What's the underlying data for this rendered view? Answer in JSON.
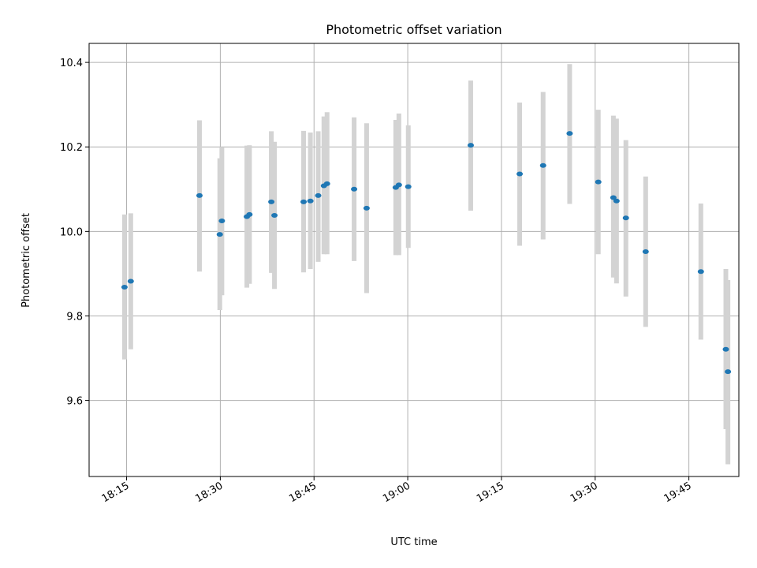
{
  "chart_data": {
    "type": "scatter",
    "title": "Photometric offset variation",
    "xlabel": "UTC time",
    "ylabel": "Photometric offset",
    "x_axis": {
      "type": "time",
      "range": [
        "18:09",
        "19:53"
      ],
      "ticks": [
        "18:15",
        "18:30",
        "18:45",
        "19:00",
        "19:15",
        "19:30",
        "19:45"
      ]
    },
    "y_axis": {
      "range": [
        9.42,
        10.445
      ],
      "ticks": [
        9.6,
        9.8,
        10.0,
        10.2,
        10.4
      ],
      "tick_labels": [
        "9.6",
        "9.8",
        "10.0",
        "10.2",
        "10.4"
      ]
    },
    "grid": true,
    "colors": {
      "points": "#1f77b4",
      "error_bars": "#d3d3d3",
      "grid": "#b0b0b0"
    },
    "series": [
      {
        "marker": "point",
        "error_bars": true,
        "points": [
          {
            "x": "18:14:40",
            "y": 9.868,
            "err_low": 9.697,
            "err_high": 10.04
          },
          {
            "x": "18:15:40",
            "y": 9.882,
            "err_low": 9.721,
            "err_high": 10.043
          },
          {
            "x": "18:26:40",
            "y": 10.085,
            "err_low": 9.905,
            "err_high": 10.263
          },
          {
            "x": "18:29:55",
            "y": 9.993,
            "err_low": 9.814,
            "err_high": 10.173
          },
          {
            "x": "18:30:15",
            "y": 10.025,
            "err_low": 9.849,
            "err_high": 10.2
          },
          {
            "x": "18:34:15",
            "y": 10.035,
            "err_low": 9.867,
            "err_high": 10.203
          },
          {
            "x": "18:34:40",
            "y": 10.04,
            "err_low": 9.876,
            "err_high": 10.204
          },
          {
            "x": "18:38:10",
            "y": 10.07,
            "err_low": 9.902,
            "err_high": 10.237
          },
          {
            "x": "18:38:40",
            "y": 10.038,
            "err_low": 9.864,
            "err_high": 10.212
          },
          {
            "x": "18:43:20",
            "y": 10.07,
            "err_low": 9.903,
            "err_high": 10.238
          },
          {
            "x": "18:44:25",
            "y": 10.072,
            "err_low": 9.911,
            "err_high": 10.234
          },
          {
            "x": "18:45:40",
            "y": 10.085,
            "err_low": 9.928,
            "err_high": 10.237
          },
          {
            "x": "18:46:35",
            "y": 10.108,
            "err_low": 9.946,
            "err_high": 10.272
          },
          {
            "x": "18:47:05",
            "y": 10.113,
            "err_low": 9.946,
            "err_high": 10.282
          },
          {
            "x": "18:51:25",
            "y": 10.1,
            "err_low": 9.93,
            "err_high": 10.27
          },
          {
            "x": "18:53:25",
            "y": 10.055,
            "err_low": 9.854,
            "err_high": 10.256
          },
          {
            "x": "18:58:05",
            "y": 10.104,
            "err_low": 9.944,
            "err_high": 10.264
          },
          {
            "x": "18:58:35",
            "y": 10.11,
            "err_low": 9.944,
            "err_high": 10.279
          },
          {
            "x": "19:00:05",
            "y": 10.106,
            "err_low": 9.961,
            "err_high": 10.251
          },
          {
            "x": "19:10:05",
            "y": 10.204,
            "err_low": 10.049,
            "err_high": 10.357
          },
          {
            "x": "19:17:55",
            "y": 10.136,
            "err_low": 9.966,
            "err_high": 10.305
          },
          {
            "x": "19:21:40",
            "y": 10.156,
            "err_low": 9.981,
            "err_high": 10.33
          },
          {
            "x": "19:25:55",
            "y": 10.232,
            "err_low": 10.065,
            "err_high": 10.396
          },
          {
            "x": "19:30:30",
            "y": 10.117,
            "err_low": 9.946,
            "err_high": 10.288
          },
          {
            "x": "19:32:55",
            "y": 10.08,
            "err_low": 9.891,
            "err_high": 10.274
          },
          {
            "x": "19:33:25",
            "y": 10.072,
            "err_low": 9.877,
            "err_high": 10.267
          },
          {
            "x": "19:34:55",
            "y": 10.032,
            "err_low": 9.846,
            "err_high": 10.216
          },
          {
            "x": "19:38:05",
            "y": 9.952,
            "err_low": 9.774,
            "err_high": 10.13
          },
          {
            "x": "19:46:55",
            "y": 9.905,
            "err_low": 9.744,
            "err_high": 10.066
          },
          {
            "x": "19:50:55",
            "y": 9.721,
            "err_low": 9.532,
            "err_high": 9.911
          },
          {
            "x": "19:51:15",
            "y": 9.668,
            "err_low": 9.449,
            "err_high": 9.885
          }
        ]
      }
    ]
  }
}
